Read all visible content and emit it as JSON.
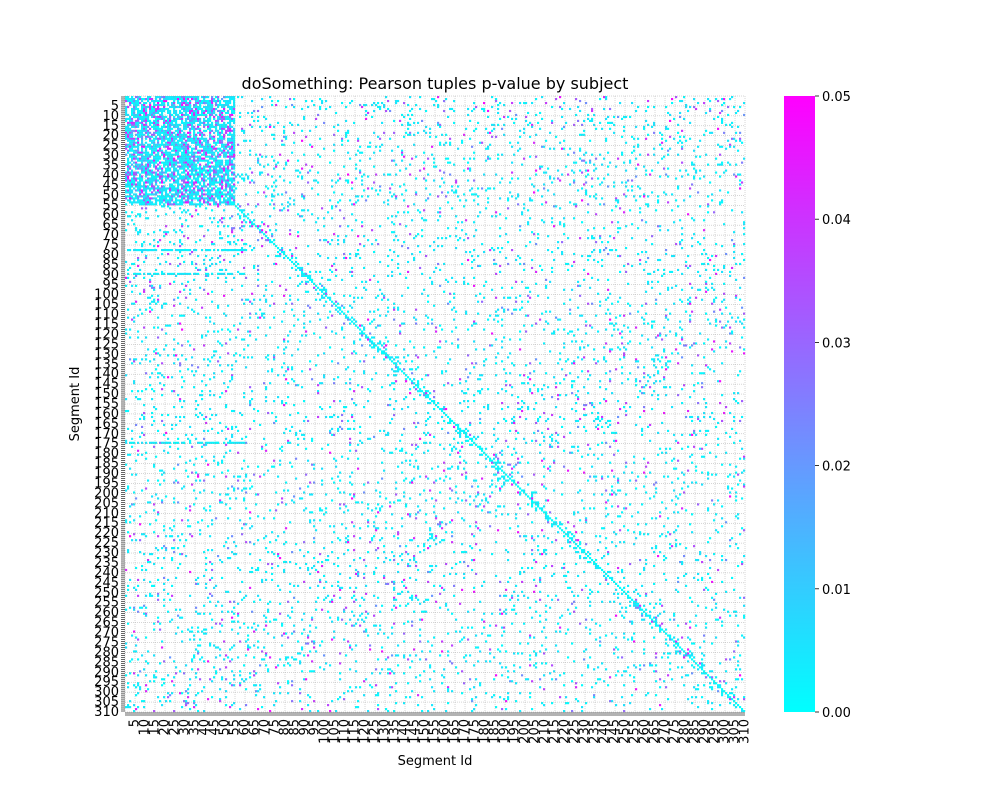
{
  "chart_data": {
    "type": "heatmap",
    "title": "doSomething: Pearson tuples p-value by subject",
    "xlabel": "Segment Id",
    "ylabel": "Segment Id",
    "x_range": [
      1,
      310
    ],
    "y_range": [
      1,
      310
    ],
    "x_tick_labels": [
      "5",
      "10",
      "15",
      "20",
      "25",
      "30",
      "35",
      "40",
      "45",
      "50",
      "55",
      "60",
      "65",
      "70",
      "75",
      "80",
      "85",
      "90",
      "95",
      "100",
      "105",
      "110",
      "115",
      "120",
      "125",
      "130",
      "135",
      "140",
      "145",
      "150",
      "155",
      "160",
      "165",
      "170",
      "175",
      "180",
      "185",
      "190",
      "195",
      "200",
      "205",
      "210",
      "215",
      "220",
      "225",
      "230",
      "235",
      "240",
      "245",
      "250",
      "255",
      "260",
      "265",
      "270",
      "275",
      "280",
      "285",
      "290",
      "295",
      "300",
      "305",
      "310"
    ],
    "y_tick_labels": [
      "5",
      "10",
      "15",
      "20",
      "25",
      "30",
      "35",
      "40",
      "45",
      "50",
      "55",
      "60",
      "65",
      "70",
      "75",
      "80",
      "85",
      "90",
      "95",
      "100",
      "105",
      "110",
      "115",
      "120",
      "125",
      "130",
      "135",
      "140",
      "145",
      "150",
      "155",
      "160",
      "165",
      "170",
      "175",
      "180",
      "185",
      "190",
      "195",
      "200",
      "205",
      "210",
      "215",
      "220",
      "225",
      "230",
      "235",
      "240",
      "245",
      "250",
      "255",
      "260",
      "265",
      "270",
      "275",
      "280",
      "285",
      "290",
      "295",
      "300",
      "305",
      "310"
    ],
    "colorbar": {
      "min": 0.0,
      "max": 0.05,
      "tick_labels": [
        "0.00",
        "0.01",
        "0.02",
        "0.03",
        "0.04",
        "0.05"
      ],
      "colormap": "cool",
      "color_low": "#00ffff",
      "color_high": "#ff00ff"
    },
    "grid": true,
    "diagonal_value": 0.0,
    "dense_block": {
      "rows": [
        1,
        55
      ],
      "cols": [
        1,
        55
      ],
      "description_value_range": [
        0.0,
        0.05
      ]
    }
  }
}
